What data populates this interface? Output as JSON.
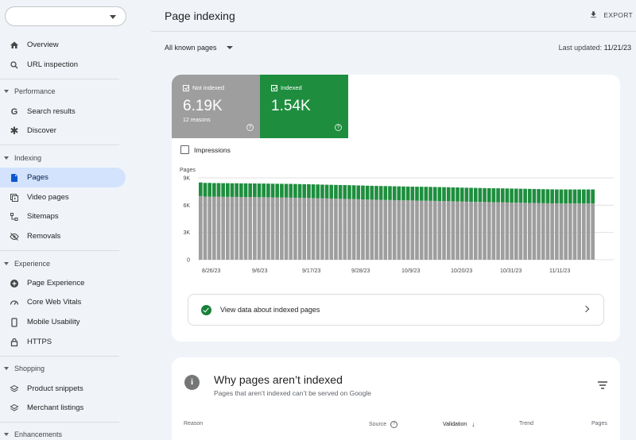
{
  "sidebar": {
    "property_select": "",
    "top_items": [
      {
        "label": "Overview",
        "icon": "home-icon"
      },
      {
        "label": "URL inspection",
        "icon": "search-icon"
      }
    ],
    "sections": [
      {
        "title": "Performance",
        "items": [
          {
            "label": "Search results",
            "icon": "google-g-icon"
          },
          {
            "label": "Discover",
            "icon": "asterisk-icon"
          }
        ]
      },
      {
        "title": "Indexing",
        "items": [
          {
            "label": "Pages",
            "icon": "pages-icon",
            "active": true
          },
          {
            "label": "Video pages",
            "icon": "video-pages-icon"
          },
          {
            "label": "Sitemaps",
            "icon": "sitemap-icon"
          },
          {
            "label": "Removals",
            "icon": "eye-off-icon"
          }
        ]
      },
      {
        "title": "Experience",
        "items": [
          {
            "label": "Page Experience",
            "icon": "plus-circle-icon"
          },
          {
            "label": "Core Web Vitals",
            "icon": "gauge-icon"
          },
          {
            "label": "Mobile Usability",
            "icon": "phone-icon"
          },
          {
            "label": "HTTPS",
            "icon": "lock-icon"
          }
        ]
      },
      {
        "title": "Shopping",
        "items": [
          {
            "label": "Product snippets",
            "icon": "layers-icon"
          },
          {
            "label": "Merchant listings",
            "icon": "layers-icon"
          }
        ]
      },
      {
        "title": "Enhancements",
        "items": []
      }
    ]
  },
  "header": {
    "title": "Page indexing",
    "export_label": "EXPORT",
    "filter_label": "All known pages",
    "last_updated_label": "Last updated:",
    "last_updated_value": "11/21/23"
  },
  "summary": {
    "not_indexed": {
      "label": "Not indexed",
      "value": "6.19K",
      "sub": "12 reasons",
      "color": "#9e9e9e"
    },
    "indexed": {
      "label": "Indexed",
      "value": "1.54K",
      "color": "#1e8e3e"
    },
    "impressions_label": "Impressions",
    "help_glyph": "?"
  },
  "chart_data": {
    "type": "bar",
    "stacked": true,
    "ylabel": "Pages",
    "yticks": [
      "0",
      "3K",
      "6K",
      "9K"
    ],
    "ylim": [
      0,
      9000
    ],
    "xticks": [
      "8/26/23",
      "9/6/23",
      "9/17/23",
      "9/28/23",
      "10/9/23",
      "10/20/23",
      "10/31/23",
      "11/11/23"
    ],
    "x_start": "8/26/23",
    "x_end": "11/21/23",
    "series": [
      {
        "name": "Not indexed",
        "color": "#9e9e9e",
        "values": [
          7000,
          6950,
          6950,
          6930,
          6930,
          6920,
          6920,
          6910,
          6910,
          6900,
          6900,
          6890,
          6890,
          6880,
          6880,
          6870,
          6860,
          6850,
          6850,
          6840,
          6830,
          6820,
          6810,
          6800,
          6790,
          6780,
          6770,
          6750,
          6740,
          6730,
          6720,
          6700,
          6690,
          6680,
          6670,
          6650,
          6640,
          6620,
          6610,
          6600,
          6590,
          6580,
          6570,
          6560,
          6550,
          6540,
          6530,
          6520,
          6510,
          6500,
          6490,
          6480,
          6470,
          6460,
          6450,
          6440,
          6430,
          6420,
          6400,
          6390,
          6380,
          6370,
          6360,
          6350,
          6340,
          6330,
          6320,
          6310,
          6300,
          6290,
          6280,
          6270,
          6260,
          6250,
          6240,
          6230,
          6220,
          6210,
          6200,
          6190,
          6190,
          6190,
          6190,
          6190,
          6190,
          6190,
          6190,
          6190
        ]
      },
      {
        "name": "Indexed",
        "color": "#1e8e3e",
        "values": [
          1500,
          1500,
          1500,
          1500,
          1500,
          1500,
          1500,
          1500,
          1500,
          1500,
          1500,
          1500,
          1500,
          1500,
          1500,
          1500,
          1500,
          1500,
          1500,
          1500,
          1510,
          1510,
          1510,
          1510,
          1510,
          1510,
          1510,
          1510,
          1510,
          1510,
          1510,
          1520,
          1520,
          1520,
          1520,
          1520,
          1520,
          1520,
          1520,
          1520,
          1520,
          1520,
          1520,
          1520,
          1520,
          1520,
          1520,
          1520,
          1520,
          1530,
          1530,
          1530,
          1530,
          1530,
          1530,
          1530,
          1530,
          1530,
          1530,
          1530,
          1530,
          1530,
          1530,
          1530,
          1530,
          1530,
          1540,
          1540,
          1540,
          1540,
          1540,
          1540,
          1540,
          1540,
          1540,
          1540,
          1540,
          1540,
          1540,
          1540,
          1540,
          1540,
          1540,
          1540,
          1540,
          1540,
          1540,
          1540
        ]
      }
    ]
  },
  "view_data_label": "View data about indexed pages",
  "why_section": {
    "info_glyph": "i",
    "title": "Why pages aren’t indexed",
    "subtitle": "Pages that aren’t indexed can’t be served on Google",
    "columns": {
      "reason": "Reason",
      "source": "Source",
      "validation": "Validation",
      "trend": "Trend",
      "pages": "Pages"
    },
    "help_glyph": "?"
  }
}
